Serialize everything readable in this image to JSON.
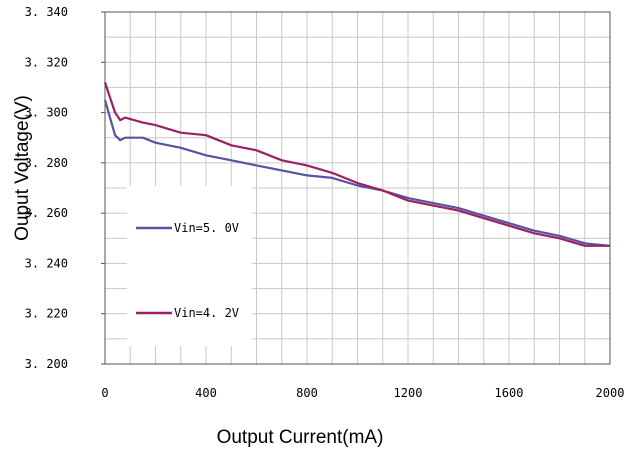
{
  "chart_data": {
    "type": "line",
    "title": "",
    "xlabel": "Output Current(mA)",
    "ylabel": "Ouput Voltage(V)",
    "xlim": [
      0,
      2000
    ],
    "ylim": [
      3.2,
      3.34
    ],
    "x_ticks": [
      "0",
      "400",
      "800",
      "1200",
      "1600",
      "2000"
    ],
    "y_ticks": [
      "3.200",
      "3.220",
      "3.240",
      "3.260",
      "3.280",
      "3.300",
      "3.320",
      "3.340"
    ],
    "grid": true,
    "legend_position": "left",
    "series": [
      {
        "name": "Vin=5.0V",
        "color": "#5555a0",
        "points": [
          [
            0,
            3.305
          ],
          [
            20,
            3.298
          ],
          [
            40,
            3.291
          ],
          [
            60,
            3.289
          ],
          [
            80,
            3.29
          ],
          [
            150,
            3.29
          ],
          [
            200,
            3.288
          ],
          [
            300,
            3.286
          ],
          [
            400,
            3.283
          ],
          [
            500,
            3.281
          ],
          [
            600,
            3.279
          ],
          [
            700,
            3.277
          ],
          [
            800,
            3.275
          ],
          [
            900,
            3.274
          ],
          [
            1000,
            3.271
          ],
          [
            1100,
            3.269
          ],
          [
            1200,
            3.266
          ],
          [
            1300,
            3.264
          ],
          [
            1400,
            3.262
          ],
          [
            1500,
            3.259
          ],
          [
            1600,
            3.256
          ],
          [
            1700,
            3.253
          ],
          [
            1800,
            3.251
          ],
          [
            1900,
            3.248
          ],
          [
            2000,
            3.247
          ]
        ]
      },
      {
        "name": "Vin=4.2V",
        "color": "#9e2060",
        "points": [
          [
            0,
            3.312
          ],
          [
            20,
            3.306
          ],
          [
            40,
            3.3
          ],
          [
            60,
            3.297
          ],
          [
            80,
            3.298
          ],
          [
            150,
            3.296
          ],
          [
            200,
            3.295
          ],
          [
            300,
            3.292
          ],
          [
            400,
            3.291
          ],
          [
            500,
            3.287
          ],
          [
            600,
            3.285
          ],
          [
            700,
            3.281
          ],
          [
            800,
            3.279
          ],
          [
            900,
            3.276
          ],
          [
            1000,
            3.272
          ],
          [
            1100,
            3.269
          ],
          [
            1200,
            3.265
          ],
          [
            1300,
            3.263
          ],
          [
            1400,
            3.261
          ],
          [
            1500,
            3.258
          ],
          [
            1600,
            3.255
          ],
          [
            1700,
            3.252
          ],
          [
            1800,
            3.25
          ],
          [
            1900,
            3.247
          ],
          [
            2000,
            3.247
          ]
        ]
      }
    ]
  }
}
